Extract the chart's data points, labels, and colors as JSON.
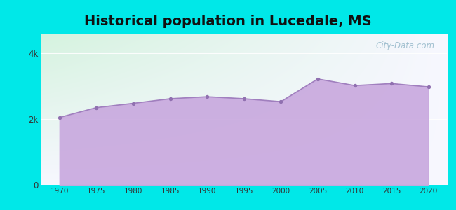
{
  "title": "Historical population in Lucedale, MS",
  "years": [
    1970,
    1975,
    1980,
    1985,
    1990,
    1995,
    2000,
    2005,
    2010,
    2015,
    2020
  ],
  "population": [
    2050,
    2350,
    2480,
    2620,
    2680,
    2620,
    2530,
    3220,
    3020,
    3080,
    2980
  ],
  "yticks": [
    0,
    2000,
    4000
  ],
  "ytick_labels": [
    "0",
    "2k",
    "4k"
  ],
  "xlim": [
    1967.5,
    2022.5
  ],
  "ylim": [
    0,
    4600
  ],
  "fill_color": "#c8a8de",
  "line_color": "#a07fbe",
  "dot_color": "#9070b0",
  "outer_bg": "#00e8e8",
  "title_fontsize": 14,
  "watermark_text": "City-Data.com",
  "watermark_color": "#99bbcc"
}
